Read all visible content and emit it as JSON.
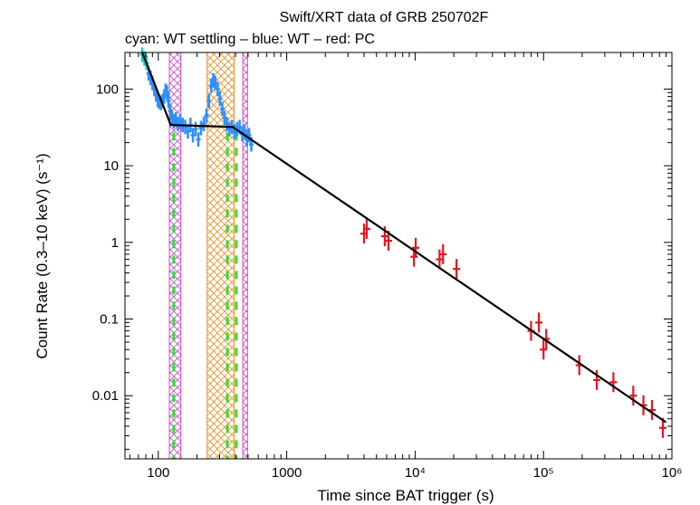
{
  "chart_data": {
    "type": "scatter",
    "title": "Swift/XRT data of GRB 250702F",
    "subtitle": "cyan: WT settling – blue: WT – red: PC",
    "xlabel": "Time since BAT trigger (s)",
    "ylabel": "Count Rate (0.3–10 keV) (s⁻¹)",
    "xscale": "log",
    "yscale": "log",
    "xlim": [
      55,
      1000000
    ],
    "ylim": [
      0.0015,
      300
    ],
    "x_ticks": [
      {
        "value": 100,
        "label": "100"
      },
      {
        "value": 1000,
        "label": "1000"
      },
      {
        "value": 10000,
        "label": "10⁴"
      },
      {
        "value": 100000,
        "label": "10⁵"
      },
      {
        "value": 1000000,
        "label": "10⁶"
      }
    ],
    "y_ticks": [
      {
        "value": 100,
        "label": "100"
      },
      {
        "value": 10,
        "label": "10"
      },
      {
        "value": 1,
        "label": "1"
      },
      {
        "value": 0.1,
        "label": "0.1"
      },
      {
        "value": 0.01,
        "label": "0.01"
      }
    ],
    "colors": {
      "wt_settling": "#00cccc",
      "wt": "#2b8fff",
      "pc": "#e8131f",
      "model": "#000000",
      "flare_box": "#cc44cc",
      "box_orange": "#f08a20",
      "breaks": "#33dd33"
    },
    "series": [
      {
        "name": "WT settling",
        "points": [
          {
            "x": 75,
            "y": 280
          },
          {
            "x": 78,
            "y": 250
          },
          {
            "x": 81,
            "y": 220
          }
        ]
      },
      {
        "name": "WT",
        "points": [
          {
            "x": 84,
            "y": 160
          },
          {
            "x": 87,
            "y": 140
          },
          {
            "x": 90,
            "y": 120
          },
          {
            "x": 93,
            "y": 100
          },
          {
            "x": 96,
            "y": 85
          },
          {
            "x": 99,
            "y": 72
          },
          {
            "x": 102,
            "y": 68
          },
          {
            "x": 105,
            "y": 66
          },
          {
            "x": 108,
            "y": 70
          },
          {
            "x": 111,
            "y": 80
          },
          {
            "x": 114,
            "y": 95
          },
          {
            "x": 117,
            "y": 90
          },
          {
            "x": 120,
            "y": 70
          },
          {
            "x": 124,
            "y": 52
          },
          {
            "x": 128,
            "y": 42
          },
          {
            "x": 132,
            "y": 38
          },
          {
            "x": 137,
            "y": 40
          },
          {
            "x": 142,
            "y": 35
          },
          {
            "x": 148,
            "y": 38
          },
          {
            "x": 155,
            "y": 34
          },
          {
            "x": 162,
            "y": 32
          },
          {
            "x": 170,
            "y": 28
          },
          {
            "x": 178,
            "y": 34
          },
          {
            "x": 186,
            "y": 25
          },
          {
            "x": 195,
            "y": 30
          },
          {
            "x": 205,
            "y": 22
          },
          {
            "x": 215,
            "y": 31
          },
          {
            "x": 226,
            "y": 35
          },
          {
            "x": 237,
            "y": 45
          },
          {
            "x": 248,
            "y": 70
          },
          {
            "x": 258,
            "y": 110
          },
          {
            "x": 268,
            "y": 130
          },
          {
            "x": 278,
            "y": 120
          },
          {
            "x": 290,
            "y": 100
          },
          {
            "x": 302,
            "y": 75
          },
          {
            "x": 315,
            "y": 55
          },
          {
            "x": 328,
            "y": 42
          },
          {
            "x": 342,
            "y": 35
          },
          {
            "x": 358,
            "y": 30
          },
          {
            "x": 375,
            "y": 32
          },
          {
            "x": 392,
            "y": 28
          },
          {
            "x": 410,
            "y": 30
          },
          {
            "x": 430,
            "y": 32
          },
          {
            "x": 450,
            "y": 26
          },
          {
            "x": 470,
            "y": 28
          },
          {
            "x": 490,
            "y": 22
          },
          {
            "x": 510,
            "y": 25
          },
          {
            "x": 530,
            "y": 19
          }
        ]
      },
      {
        "name": "PC",
        "points": [
          {
            "x": 4000,
            "y": 1.3
          },
          {
            "x": 4200,
            "y": 1.5
          },
          {
            "x": 5800,
            "y": 1.2
          },
          {
            "x": 6200,
            "y": 1.05
          },
          {
            "x": 9800,
            "y": 0.65
          },
          {
            "x": 10100,
            "y": 0.85
          },
          {
            "x": 15500,
            "y": 0.6
          },
          {
            "x": 16500,
            "y": 0.7
          },
          {
            "x": 21000,
            "y": 0.45
          },
          {
            "x": 80000,
            "y": 0.07
          },
          {
            "x": 92000,
            "y": 0.09
          },
          {
            "x": 100000,
            "y": 0.04
          },
          {
            "x": 105000,
            "y": 0.055
          },
          {
            "x": 190000,
            "y": 0.025
          },
          {
            "x": 260000,
            "y": 0.016
          },
          {
            "x": 350000,
            "y": 0.015
          },
          {
            "x": 500000,
            "y": 0.01
          },
          {
            "x": 600000,
            "y": 0.0075
          },
          {
            "x": 700000,
            "y": 0.0065
          },
          {
            "x": 850000,
            "y": 0.0038
          }
        ]
      }
    ],
    "model_line": {
      "name": "Best-fit model",
      "points": [
        {
          "x": 75,
          "y": 300
        },
        {
          "x": 125,
          "y": 34
        },
        {
          "x": 380,
          "y": 32
        },
        {
          "x": 900000,
          "y": 0.0045
        }
      ]
    },
    "shaded_regions": [
      {
        "name": "flare-window-1",
        "x_range": [
          122,
          150
        ],
        "color": "flare_box"
      },
      {
        "name": "flare-window-2",
        "x_range": [
          240,
          390
        ],
        "color": "box_orange"
      },
      {
        "name": "flare-window-3",
        "x_range": [
          455,
          495
        ],
        "color": "flare_box"
      }
    ],
    "break_markers": [
      {
        "name": "break-1",
        "x": 132
      },
      {
        "name": "break-2",
        "x": 345
      },
      {
        "name": "break-3",
        "x": 405
      }
    ]
  }
}
